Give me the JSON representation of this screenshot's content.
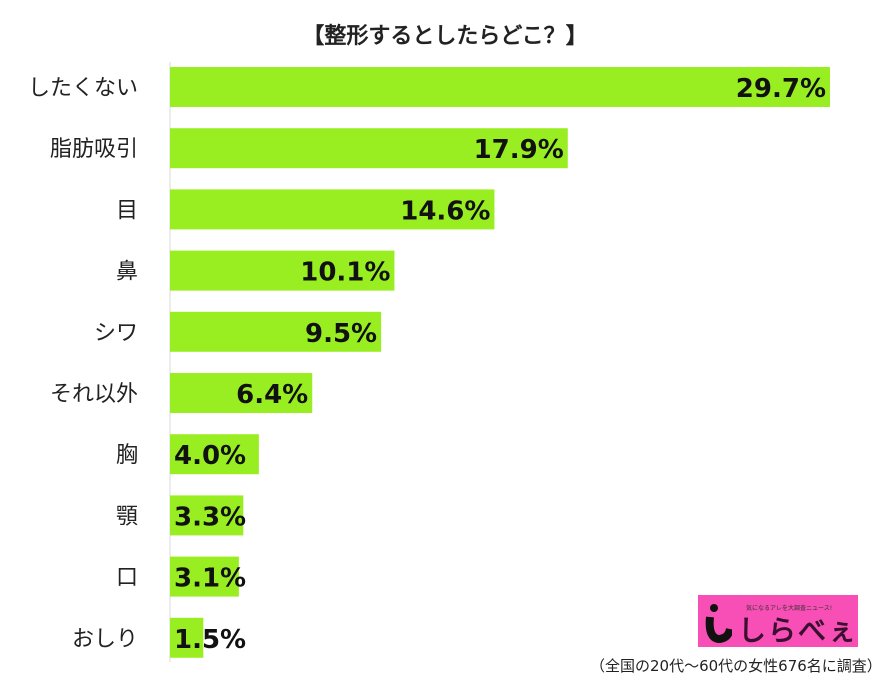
{
  "chart_data": {
    "type": "bar",
    "orientation": "horizontal",
    "title": "【整形するとしたらどこ？】",
    "categories": [
      "したくない",
      "脂肪吸引",
      "目",
      "鼻",
      "シワ",
      "それ以外",
      "胸",
      "顎",
      "口",
      "おしり"
    ],
    "values": [
      29.7,
      17.9,
      14.6,
      10.1,
      9.5,
      6.4,
      4.0,
      3.3,
      3.1,
      1.5
    ],
    "value_labels": [
      "29.7%",
      "17.9%",
      "14.6%",
      "10.1%",
      "9.5%",
      "6.4%",
      "4.0%",
      "3.3%",
      "3.1%",
      "1.5%"
    ],
    "xlim": [
      0,
      30
    ],
    "xlabel": "",
    "ylabel": "",
    "grid": false,
    "bar_color": "#99ee22"
  },
  "logo": {
    "tagline": "気になるアレを大調査ニュース!",
    "name": "しらべぇ"
  },
  "footnote": "（全国の20代～60代の女性676名に調査）"
}
